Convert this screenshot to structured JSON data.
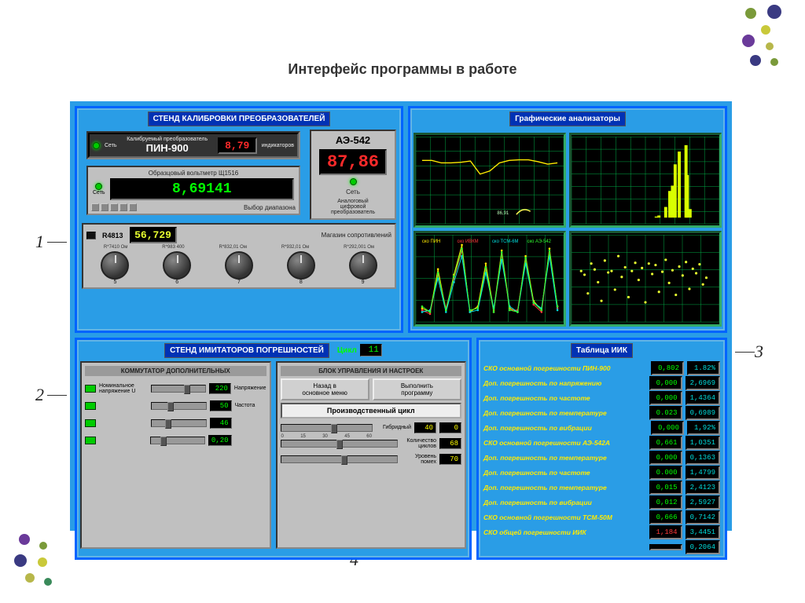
{
  "title": "Интерфейс программы в работе",
  "decoration": {
    "dot_colors": [
      "#3a3a82",
      "#7a9a3a",
      "#c9c93a",
      "#6a3a9a",
      "#3a8a5a",
      "#b7b74a"
    ]
  },
  "calibration": {
    "panel_title": "СТЕНД КАЛИБРОВКИ ПРЕОБРАЗОВАТЕЛЕЙ",
    "pin": {
      "name": "ПИН-900",
      "desc": "Калибруемый\nпреобразователь",
      "indicators": "индикаторов",
      "net": "Сеть",
      "value": "8,79"
    },
    "ae": {
      "name": "АЭ-542",
      "value": "87,86",
      "net": "Сеть",
      "caption": "Аналоговый\nцифровой\nпреобразователь"
    },
    "voltmeter": {
      "caption": "Образцовый вольтметр Щ1516",
      "value": "8,69141",
      "net": "Сеть",
      "range": "Выбор диапазона"
    },
    "r4813": {
      "name": "R4813",
      "value": "56,729",
      "caption": "Магазин сопротивлений",
      "dial_labels": [
        "R*7410 Ом",
        "R*983 400",
        "R*832,01 Ом",
        "R*932,01 Ом",
        "R*292,001 Ом"
      ],
      "dials": [
        "5",
        "6",
        "7",
        "8",
        "9"
      ]
    }
  },
  "analyzers": {
    "panel_title": "Графические анализаторы",
    "chart1": {
      "type": "line",
      "color": "#ffeb00",
      "y": [
        92,
        92,
        88,
        88,
        89,
        91,
        70,
        75,
        88,
        92,
        93,
        93,
        90,
        86,
        88
      ],
      "ylim": [
        0,
        120
      ],
      "xlim": [
        0,
        150
      ],
      "marker": "86,91"
    },
    "chart2": {
      "type": "bar",
      "color": "#d8ff00",
      "x": [
        5.8,
        6.0,
        6.5,
        6.8,
        7.0,
        7.2,
        7.5,
        8.0,
        8.1,
        8.3
      ],
      "y": [
        1,
        2,
        10,
        25,
        30,
        50,
        62,
        68,
        40,
        8
      ],
      "xlim": [
        0,
        10
      ],
      "ylim": [
        0,
        70
      ]
    },
    "chart3": {
      "type": "multi-line",
      "series": [
        {
          "color": "#ffeb00",
          "label": "ско ПИН",
          "y": [
            0.4,
            0.2,
            2.5,
            0.3,
            2.2,
            3.8,
            0.2,
            0.5,
            2.8,
            0.3,
            3.5,
            0.4,
            0.2,
            3.2,
            0.8,
            0.3,
            3.6,
            0.5
          ]
        },
        {
          "color": "#ff3a3a",
          "label": "ско ИВКМ",
          "y": [
            0.3,
            0.1,
            2.2,
            0.4,
            2.0,
            3.5,
            0.3,
            0.4,
            2.5,
            0.2,
            3.3,
            0.3,
            0.3,
            3.0,
            0.6,
            0.2,
            3.4,
            0.4
          ]
        },
        {
          "color": "#00e0e0",
          "label": "ско ТСМ-6М",
          "y": [
            0.2,
            0.3,
            2.0,
            0.2,
            1.8,
            3.2,
            0.2,
            0.3,
            2.3,
            0.4,
            3.0,
            0.5,
            0.2,
            2.8,
            0.7,
            0.4,
            3.2,
            0.3
          ]
        },
        {
          "color": "#30ff30",
          "label": "ско АЭ-542",
          "y": [
            0.5,
            0.2,
            2.3,
            0.3,
            2.1,
            3.6,
            0.3,
            0.4,
            2.6,
            0.2,
            3.4,
            0.3,
            0.2,
            3.1,
            0.7,
            0.3,
            3.5,
            0.5
          ]
        }
      ],
      "xlim": [
        0,
        40
      ],
      "ylim": [
        0,
        4
      ]
    },
    "chart4": {
      "type": "scatter",
      "color": "#e8ff30",
      "xlim": [
        0,
        40
      ],
      "ylim": [
        -4,
        6
      ],
      "pts": [
        [
          1,
          2
        ],
        [
          2,
          1.5
        ],
        [
          3,
          -1
        ],
        [
          4,
          3
        ],
        [
          5,
          2.2
        ],
        [
          6,
          0.5
        ],
        [
          7,
          -2
        ],
        [
          8,
          3.4
        ],
        [
          9,
          1.8
        ],
        [
          10,
          2.0
        ],
        [
          11,
          -0.5
        ],
        [
          12,
          4
        ],
        [
          13,
          1.2
        ],
        [
          14,
          2.5
        ],
        [
          15,
          -1.5
        ],
        [
          16,
          2
        ],
        [
          17,
          3.1
        ],
        [
          18,
          0.8
        ],
        [
          19,
          2.4
        ],
        [
          20,
          -2.2
        ],
        [
          21,
          3
        ],
        [
          22,
          1.6
        ],
        [
          23,
          2.8
        ],
        [
          24,
          -0.8
        ],
        [
          25,
          1.9
        ],
        [
          26,
          3.5
        ],
        [
          27,
          0.4
        ],
        [
          28,
          2.1
        ],
        [
          29,
          -1.2
        ],
        [
          30,
          2.6
        ],
        [
          31,
          1.4
        ],
        [
          32,
          3.2
        ],
        [
          33,
          -0.4
        ],
        [
          34,
          2.3
        ],
        [
          35,
          1.7
        ],
        [
          36,
          2.9
        ],
        [
          37,
          0.2
        ],
        [
          38,
          1.1
        ]
      ]
    }
  },
  "errors": {
    "panel_title": "СТЕНД ИМИТАТОРОВ ПОГРЕШНОСТЕЙ",
    "cycle_label": "Цикл",
    "cycle_value": "11",
    "left": {
      "title": "КОММУТАТОР ДОПОЛНИТЕЛЬНЫХ",
      "rows": [
        {
          "label": "Номинальное напряжение U",
          "value": "220",
          "pos": 60,
          "unit": "Напряжение"
        },
        {
          "label": "",
          "value": "50",
          "pos": 30,
          "unit": "Частота"
        },
        {
          "label": "",
          "value": "46",
          "pos": 25,
          "unit": ""
        },
        {
          "label": "",
          "value": "0,20",
          "pos": 18,
          "unit": ""
        }
      ]
    },
    "right": {
      "title": "БЛОК УПРАВЛЕНИЯ И НАСТРОЕК",
      "btn_back": "Назад в\nосновное меню",
      "btn_run": "Выполнить\nпрограмму",
      "mode": "Производственный цикл",
      "rows": [
        {
          "label": "Гибридный",
          "v1": "40",
          "v2": "0",
          "pos": 55,
          "ticks": "0  15  30 45 60"
        },
        {
          "label": "Количество\nциклов",
          "v1": "68",
          "v2": "",
          "pos": 48
        },
        {
          "label": "Уровень\nпомех",
          "v1": "70",
          "v2": "",
          "pos": 52
        }
      ]
    }
  },
  "iik": {
    "panel_title": "Таблица ИИК",
    "rows": [
      {
        "label": "СКО основной погрешности ПИН-900",
        "a": "0,802",
        "b": "1.82%",
        "ac": "green",
        "bc": "teal"
      },
      {
        "label": "Доп. погрешность по напряжению",
        "a": "0,000",
        "b": "2,6969",
        "ac": "green",
        "bc": "teal"
      },
      {
        "label": "Доп. погрешность по частоте",
        "a": "0,000",
        "b": "1,4364",
        "ac": "green",
        "bc": "teal"
      },
      {
        "label": "Доп. погрешность по температуре",
        "a": "0.023",
        "b": "0,6989",
        "ac": "green",
        "bc": "teal"
      },
      {
        "label": "Доп. погрешность по вибрации",
        "a": "0,000",
        "b": "1,92%",
        "ac": "green",
        "bc": "teal"
      },
      {
        "label": "СКО основной погрешности АЭ-542А",
        "a": "0,661",
        "b": "1,0351",
        "ac": "green",
        "bc": "teal"
      },
      {
        "label": "Доп. погрешность по температуре",
        "a": "0,000",
        "b": "0,1363",
        "ac": "green",
        "bc": "teal"
      },
      {
        "label": "Доп. погрешность по частоте",
        "a": "0.000",
        "b": "1,4799",
        "ac": "green",
        "bc": "teal"
      },
      {
        "label": "Доп. погрешность по температуре",
        "a": "0,015",
        "b": "2,4123",
        "ac": "green",
        "bc": "teal"
      },
      {
        "label": "Доп. погрешность по вибрации",
        "a": "0,012",
        "b": "2,5927",
        "ac": "green",
        "bc": "teal"
      },
      {
        "label": "СКО основной погрешности ТСМ-50М",
        "a": "0,666",
        "b": "0,7142",
        "ac": "green",
        "bc": "teal"
      },
      {
        "label": "СКО общей погрешности ИИК",
        "a": "1,184",
        "b": "3,4451",
        "ac": "red",
        "bc": "teal"
      },
      {
        "label": "",
        "a": "",
        "b": "0,2064",
        "ac": "green",
        "bc": "teal"
      }
    ]
  },
  "callouts": {
    "1": "1",
    "2": "2",
    "3": "3",
    "4": "4"
  }
}
